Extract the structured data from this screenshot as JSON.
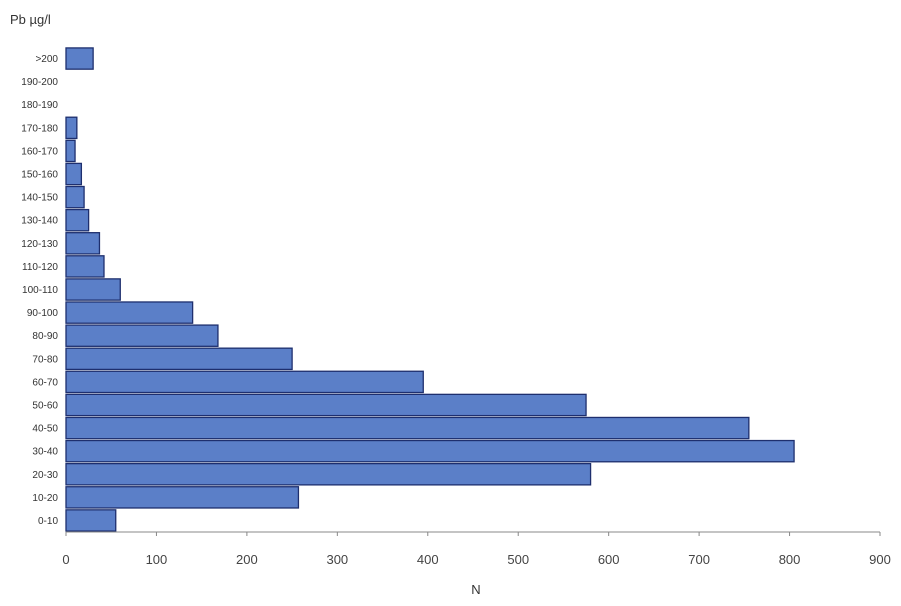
{
  "chart_data": {
    "type": "bar",
    "orientation": "horizontal",
    "ylabel": "Pb µg/l",
    "xlabel": "N",
    "xlim": [
      0,
      900
    ],
    "xticks": [
      0,
      100,
      200,
      300,
      400,
      500,
      600,
      700,
      800,
      900
    ],
    "grid": false,
    "categories": [
      "0-10",
      "10-20",
      "20-30",
      "30-40",
      "40-50",
      "50-60",
      "60-70",
      "70-80",
      "80-90",
      "90-100",
      "100-110",
      "110-120",
      "120-130",
      "130-140",
      "140-150",
      "150-160",
      "160-170",
      "170-180",
      "180-190",
      "190-200",
      ">200"
    ],
    "values": [
      55,
      257,
      580,
      805,
      755,
      575,
      395,
      250,
      168,
      140,
      60,
      42,
      37,
      25,
      20,
      17,
      10,
      12,
      0,
      0,
      30
    ],
    "bar_color": "#5b7fc8",
    "bar_edge_color": "#1e2f6e"
  }
}
